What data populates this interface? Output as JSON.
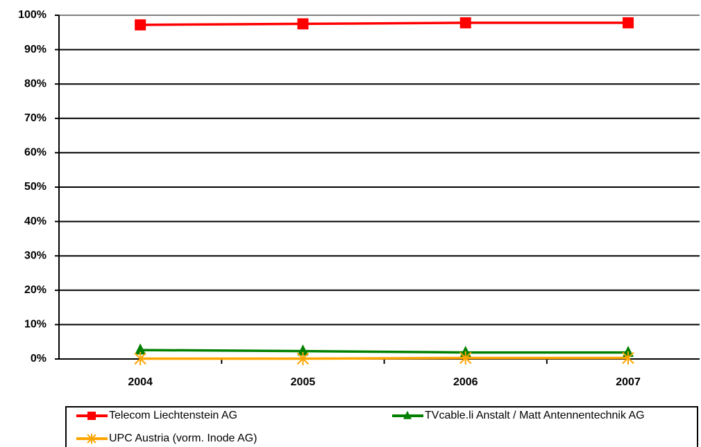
{
  "chart_data": {
    "type": "line",
    "categories": [
      "2004",
      "2005",
      "2006",
      "2007"
    ],
    "series": [
      {
        "name": "Telecom Liechtenstein AG",
        "color": "#ff0000",
        "marker": "square",
        "values": [
          97.2,
          97.5,
          97.8,
          97.8
        ]
      },
      {
        "name": "TVcable.li Anstalt / Matt Antennentechnik AG",
        "color": "#008000",
        "marker": "triangle",
        "values": [
          2.6,
          2.3,
          1.9,
          1.9
        ]
      },
      {
        "name": "UPC Austria (vorm. Inode AG)",
        "color": "#ffa500",
        "marker": "asterisk",
        "values": [
          0.1,
          0.1,
          0.3,
          0.3
        ]
      }
    ],
    "ylim": [
      0,
      100
    ],
    "yticks": [
      {
        "value": 0,
        "label": "0%"
      },
      {
        "value": 10,
        "label": "10%"
      },
      {
        "value": 20,
        "label": "20%"
      },
      {
        "value": 30,
        "label": "30%"
      },
      {
        "value": 40,
        "label": "40%"
      },
      {
        "value": 50,
        "label": "50%"
      },
      {
        "value": 60,
        "label": "60%"
      },
      {
        "value": 70,
        "label": "70%"
      },
      {
        "value": 80,
        "label": "80%"
      },
      {
        "value": 90,
        "label": "90%"
      },
      {
        "value": 100,
        "label": "100%"
      }
    ],
    "grid": true,
    "legend": "bottom"
  }
}
